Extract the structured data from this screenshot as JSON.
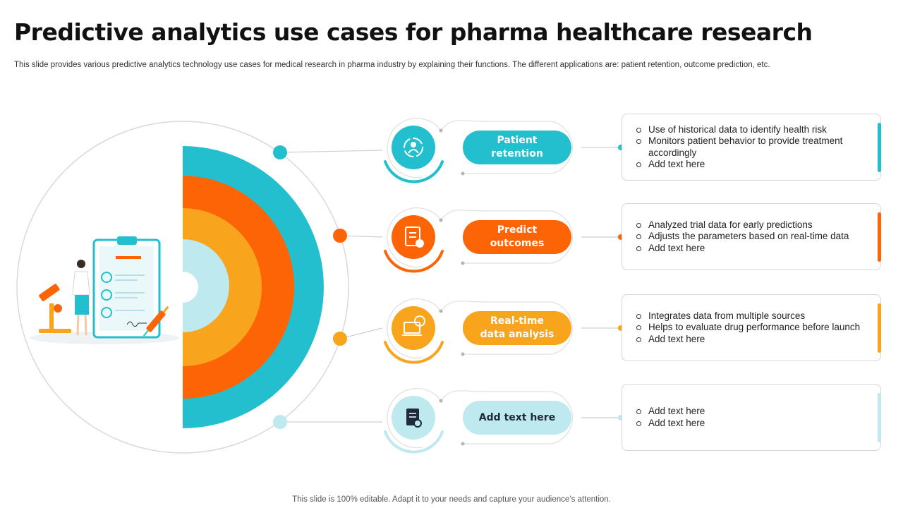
{
  "title": "Predictive analytics use cases for pharma healthcare research",
  "subtitle": "This slide provides various predictive analytics technology use cases for medical research in pharma industry by  explaining their functions. The different applications are: patient retention, outcome prediction, etc.",
  "footer": "This slide is 100% editable. Adapt it to your needs and capture your audience’s attention.",
  "colors": {
    "teal": "#23bfcf",
    "orange": "#fd6406",
    "amber": "#f8a41c",
    "light_cyan": "#bde9ef"
  },
  "use_cases": [
    {
      "label": "Patient\nretention",
      "icon": "patient-circle-icon",
      "color": "#23bfcf",
      "bullets": [
        "Use of historical data to identify health risk",
        "Monitors patient behavior to provide treatment accordingly",
        "Add text here"
      ]
    },
    {
      "label": "Predict\noutcomes",
      "icon": "checklist-report-icon",
      "color": "#fd6406",
      "bullets": [
        "Analyzed trial data for early predictions",
        "Adjusts the parameters based on real-time data",
        "Add text here"
      ]
    },
    {
      "label": "Real-time\ndata analysis",
      "icon": "laptop-chart-icon",
      "color": "#f8a41c",
      "bullets": [
        "Integrates data from multiple sources",
        "Helps to evaluate drug performance before launch",
        "Add text here"
      ]
    },
    {
      "label": "Add text here",
      "icon": "document-search-icon",
      "color": "#bde9ef",
      "bullets": [
        "Add text here",
        "Add text here"
      ]
    }
  ]
}
